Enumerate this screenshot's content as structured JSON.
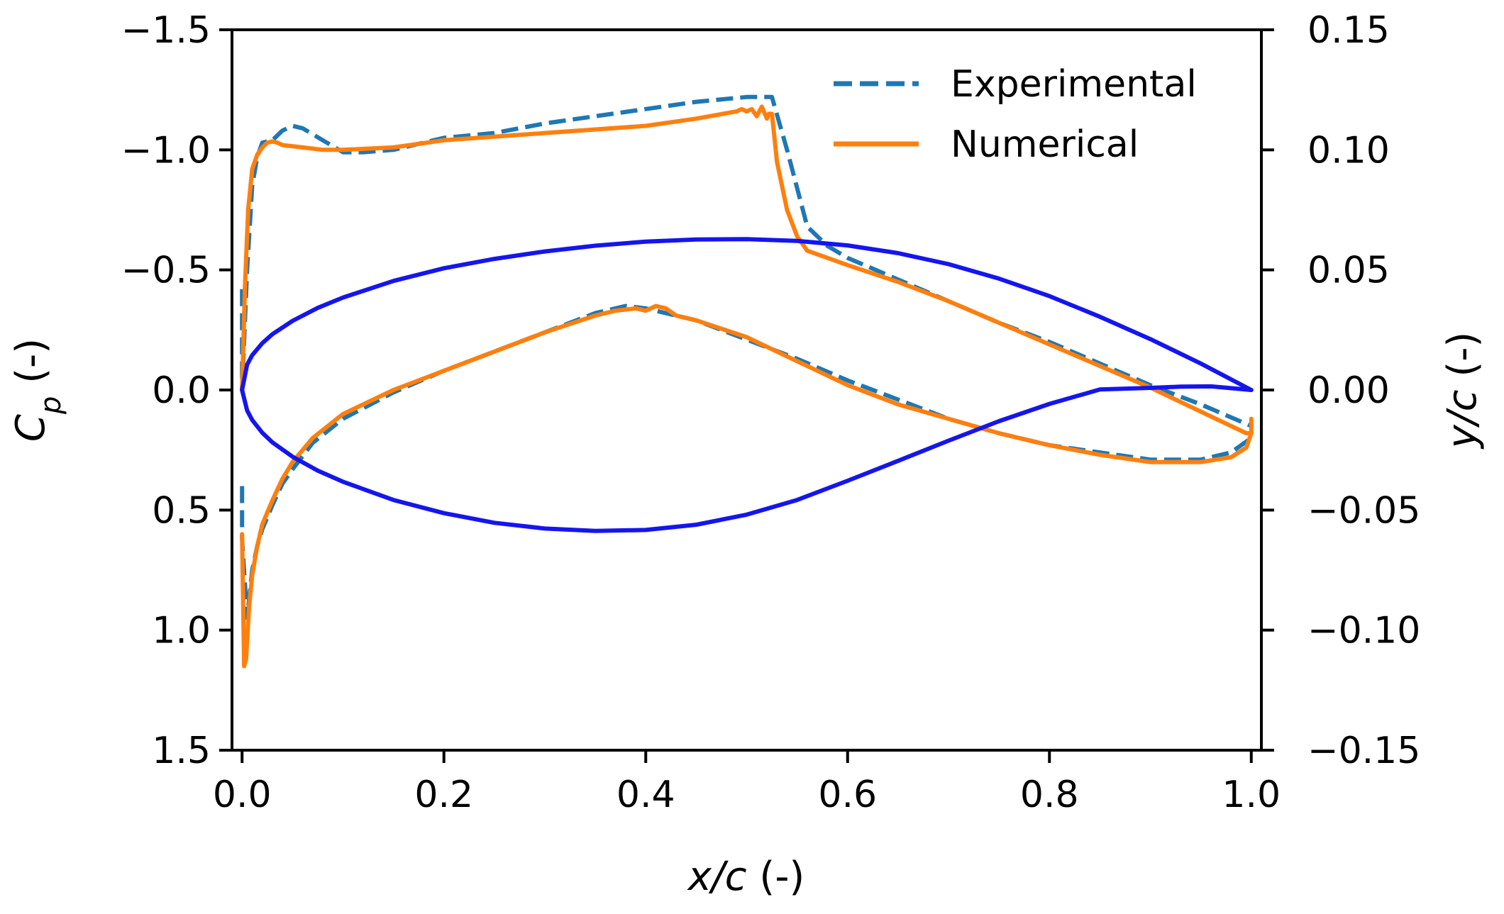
{
  "chart_data": {
    "type": "line",
    "xlabel": {
      "var": "x/c",
      "unit": " (-)"
    },
    "ylabel_left": {
      "base": "C",
      "sub": "p",
      "unit": " (-)"
    },
    "ylabel_right": {
      "var": "y/c",
      "unit": " (-)"
    },
    "xlim": [
      -0.01,
      1.01
    ],
    "ylim_left": [
      1.5,
      -1.5
    ],
    "ylim_right": [
      -0.15,
      0.15
    ],
    "x_ticks": [
      0.0,
      0.2,
      0.4,
      0.6,
      0.8,
      1.0
    ],
    "x_tick_labels": [
      "0.0",
      "0.2",
      "0.4",
      "0.6",
      "0.8",
      "1.0"
    ],
    "left_ticks": [
      -1.5,
      -1.0,
      -0.5,
      0.0,
      0.5,
      1.0,
      1.5
    ],
    "left_tick_labels": [
      "−1.5",
      "−1.0",
      "−0.5",
      "0.0",
      "0.5",
      "1.0",
      "1.5"
    ],
    "right_ticks": [
      0.15,
      0.1,
      0.05,
      0.0,
      -0.05,
      -0.1,
      -0.15
    ],
    "right_tick_labels": [
      "0.15",
      "0.10",
      "0.05",
      "0.00",
      "−0.05",
      "−0.10",
      "−0.15"
    ],
    "legend": {
      "position": "top-right",
      "entries": [
        "Experimental",
        "Numerical"
      ]
    },
    "colors": {
      "experimental": "#1f77b4",
      "numerical": "#ff7f0e",
      "airfoil": "#1515ee",
      "axes": "#000000"
    },
    "series": [
      {
        "name": "Experimental",
        "axis": "left",
        "style": "dashed",
        "color": "#1f77b4",
        "x": [
          0.0,
          0.0,
          0.005,
          0.01,
          0.015,
          0.02,
          0.03,
          0.04,
          0.05,
          0.06,
          0.08,
          0.1,
          0.12,
          0.15,
          0.2,
          0.25,
          0.3,
          0.35,
          0.4,
          0.45,
          0.5,
          0.525,
          0.54,
          0.56,
          0.58,
          0.6,
          0.65,
          0.7,
          0.75,
          0.8,
          0.85,
          0.9,
          0.95,
          1.0
        ],
        "y": [
          -0.42,
          0.0,
          -0.5,
          -0.85,
          -0.97,
          -1.03,
          -1.04,
          -1.08,
          -1.1,
          -1.09,
          -1.04,
          -0.99,
          -0.99,
          -1.0,
          -1.05,
          -1.07,
          -1.11,
          -1.14,
          -1.17,
          -1.2,
          -1.22,
          -1.22,
          -1.0,
          -0.68,
          -0.6,
          -0.55,
          -0.46,
          -0.37,
          -0.28,
          -0.2,
          -0.11,
          -0.02,
          0.06,
          0.15
        ]
      },
      {
        "name": "Experimental",
        "axis": "left",
        "style": "dashed",
        "color": "#1f77b4",
        "x": [
          0.0,
          0.0,
          0.005,
          0.01,
          0.015,
          0.02,
          0.03,
          0.04,
          0.05,
          0.07,
          0.1,
          0.15,
          0.2,
          0.25,
          0.3,
          0.35,
          0.38,
          0.4,
          0.45,
          0.5,
          0.55,
          0.6,
          0.65,
          0.7,
          0.75,
          0.8,
          0.85,
          0.9,
          0.95,
          0.98,
          1.0
        ],
        "y": [
          0.4,
          0.62,
          0.95,
          0.75,
          0.65,
          0.58,
          0.48,
          0.39,
          0.33,
          0.22,
          0.12,
          0.01,
          -0.08,
          -0.16,
          -0.24,
          -0.32,
          -0.35,
          -0.34,
          -0.29,
          -0.21,
          -0.13,
          -0.04,
          0.04,
          0.12,
          0.18,
          0.23,
          0.26,
          0.29,
          0.29,
          0.26,
          0.2
        ]
      },
      {
        "name": "Numerical",
        "axis": "left",
        "style": "solid",
        "color": "#ff7f0e",
        "x": [
          0.0,
          0.003,
          0.006,
          0.01,
          0.015,
          0.02,
          0.025,
          0.03,
          0.035,
          0.04,
          0.06,
          0.08,
          0.1,
          0.15,
          0.2,
          0.3,
          0.4,
          0.45,
          0.49,
          0.495,
          0.5,
          0.505,
          0.51,
          0.515,
          0.52,
          0.522,
          0.525,
          0.53,
          0.54,
          0.55,
          0.56,
          0.58,
          0.6,
          0.65,
          0.7,
          0.75,
          0.8,
          0.85,
          0.9,
          0.95,
          0.98,
          0.995,
          1.0
        ],
        "y": [
          0.0,
          -0.45,
          -0.75,
          -0.92,
          -0.98,
          -1.01,
          -1.03,
          -1.035,
          -1.03,
          -1.02,
          -1.01,
          -1.0,
          -1.0,
          -1.01,
          -1.04,
          -1.07,
          -1.1,
          -1.13,
          -1.16,
          -1.17,
          -1.16,
          -1.17,
          -1.14,
          -1.18,
          -1.13,
          -1.15,
          -1.15,
          -0.95,
          -0.75,
          -0.64,
          -0.58,
          -0.55,
          -0.52,
          -0.45,
          -0.37,
          -0.28,
          -0.19,
          -0.1,
          -0.01,
          0.09,
          0.15,
          0.18,
          0.18
        ]
      },
      {
        "name": "Numerical",
        "axis": "left",
        "style": "solid",
        "color": "#ff7f0e",
        "x": [
          0.0,
          0.002,
          0.004,
          0.007,
          0.01,
          0.015,
          0.02,
          0.03,
          0.04,
          0.05,
          0.07,
          0.1,
          0.15,
          0.2,
          0.25,
          0.3,
          0.35,
          0.37,
          0.39,
          0.4,
          0.41,
          0.42,
          0.43,
          0.45,
          0.5,
          0.55,
          0.6,
          0.65,
          0.7,
          0.75,
          0.8,
          0.85,
          0.9,
          0.95,
          0.98,
          0.995,
          1.0,
          1.0
        ],
        "y": [
          0.6,
          1.15,
          1.12,
          0.9,
          0.77,
          0.65,
          0.56,
          0.46,
          0.37,
          0.3,
          0.2,
          0.1,
          0.0,
          -0.08,
          -0.16,
          -0.24,
          -0.31,
          -0.33,
          -0.34,
          -0.33,
          -0.35,
          -0.34,
          -0.31,
          -0.29,
          -0.22,
          -0.12,
          -0.02,
          0.06,
          0.12,
          0.18,
          0.23,
          0.27,
          0.3,
          0.3,
          0.28,
          0.24,
          0.18,
          0.12
        ]
      },
      {
        "name": "Airfoil upper",
        "axis": "right",
        "style": "solid",
        "color": "#1515ee",
        "x": [
          0.0,
          0.005,
          0.01,
          0.02,
          0.03,
          0.05,
          0.075,
          0.1,
          0.15,
          0.2,
          0.25,
          0.3,
          0.35,
          0.4,
          0.45,
          0.5,
          0.55,
          0.6,
          0.65,
          0.7,
          0.75,
          0.8,
          0.85,
          0.9,
          0.95,
          1.0
        ],
        "y": [
          0.0,
          0.0105,
          0.0145,
          0.0195,
          0.0232,
          0.0288,
          0.0342,
          0.0385,
          0.0454,
          0.0507,
          0.0546,
          0.0577,
          0.0601,
          0.0618,
          0.0627,
          0.0628,
          0.0621,
          0.0602,
          0.057,
          0.0524,
          0.0464,
          0.0391,
          0.0305,
          0.0212,
          0.011,
          0.0
        ]
      },
      {
        "name": "Airfoil lower",
        "axis": "right",
        "style": "solid",
        "color": "#1515ee",
        "x": [
          0.0,
          0.005,
          0.01,
          0.02,
          0.03,
          0.05,
          0.075,
          0.1,
          0.15,
          0.2,
          0.25,
          0.3,
          0.35,
          0.4,
          0.45,
          0.5,
          0.55,
          0.6,
          0.65,
          0.7,
          0.75,
          0.8,
          0.85,
          0.9,
          0.93,
          0.96,
          1.0
        ],
        "y": [
          0.0,
          -0.0085,
          -0.0125,
          -0.0178,
          -0.0218,
          -0.0278,
          -0.0336,
          -0.0382,
          -0.0458,
          -0.0513,
          -0.0553,
          -0.0577,
          -0.0587,
          -0.0583,
          -0.0561,
          -0.0519,
          -0.0458,
          -0.0378,
          -0.0295,
          -0.0211,
          -0.013,
          -0.0058,
          0.0002,
          0.0009,
          0.0014,
          0.0015,
          0.0
        ]
      }
    ]
  }
}
